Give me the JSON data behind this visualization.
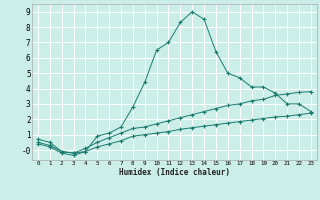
{
  "xlabel": "Humidex (Indice chaleur)",
  "bg_color": "#cceee8",
  "grid_color": "#ffffff",
  "line_color": "#1a7a6e",
  "xlim": [
    -0.5,
    23.5
  ],
  "ylim": [
    -0.65,
    9.5
  ],
  "xticks": [
    0,
    1,
    2,
    3,
    4,
    5,
    6,
    7,
    8,
    9,
    10,
    11,
    12,
    13,
    14,
    15,
    16,
    17,
    18,
    19,
    20,
    21,
    22,
    23
  ],
  "yticks": [
    0,
    1,
    2,
    3,
    4,
    5,
    6,
    7,
    8,
    9
  ],
  "ytick_labels": [
    "-0",
    "1",
    "2",
    "3",
    "4",
    "5",
    "6",
    "7",
    "8",
    "9"
  ],
  "line1_x": [
    0,
    1,
    2,
    3,
    4,
    5,
    6,
    7,
    8,
    9,
    10,
    11,
    12,
    13,
    14,
    15,
    16,
    17,
    18,
    19,
    20,
    21,
    22,
    23
  ],
  "line1_y": [
    0.7,
    0.5,
    -0.1,
    -0.2,
    -0.1,
    0.9,
    1.1,
    1.5,
    2.8,
    4.4,
    6.5,
    7.0,
    8.3,
    9.0,
    8.5,
    6.4,
    5.0,
    4.7,
    4.1,
    4.1,
    3.7,
    3.0,
    3.0,
    2.5
  ],
  "line2_x": [
    0,
    1,
    2,
    3,
    4,
    5,
    6,
    7,
    8,
    9,
    10,
    11,
    12,
    13,
    14,
    15,
    16,
    17,
    18,
    19,
    20,
    21,
    22,
    23
  ],
  "line2_y": [
    0.5,
    0.3,
    -0.1,
    -0.2,
    0.1,
    0.5,
    0.8,
    1.1,
    1.4,
    1.5,
    1.7,
    1.9,
    2.1,
    2.3,
    2.5,
    2.7,
    2.9,
    3.0,
    3.2,
    3.3,
    3.55,
    3.65,
    3.75,
    3.8
  ],
  "line3_x": [
    0,
    1,
    2,
    3,
    4,
    5,
    6,
    7,
    8,
    9,
    10,
    11,
    12,
    13,
    14,
    15,
    16,
    17,
    18,
    19,
    20,
    21,
    22,
    23
  ],
  "line3_y": [
    0.4,
    0.2,
    -0.2,
    -0.35,
    -0.1,
    0.2,
    0.4,
    0.6,
    0.9,
    1.0,
    1.1,
    1.2,
    1.35,
    1.45,
    1.55,
    1.65,
    1.75,
    1.85,
    1.95,
    2.05,
    2.15,
    2.2,
    2.3,
    2.4
  ]
}
